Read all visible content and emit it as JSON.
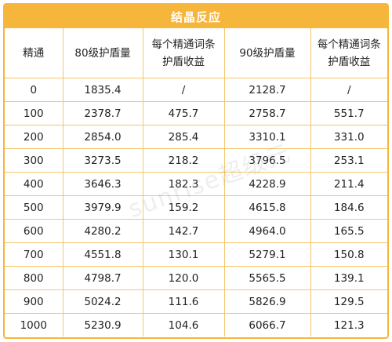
{
  "title": "结晶反应",
  "watermark": "sunrise超级元",
  "headers": [
    {
      "lines": [
        "精通"
      ]
    },
    {
      "lines": [
        "80级护盾量"
      ]
    },
    {
      "lines": [
        "每个精通词条",
        "护盾收益"
      ]
    },
    {
      "lines": [
        "90级护盾量"
      ]
    },
    {
      "lines": [
        "每个精通词条",
        "护盾收益"
      ]
    }
  ],
  "rows": [
    [
      "0",
      "1835.4",
      "/",
      "2128.7",
      "/"
    ],
    [
      "100",
      "2378.7",
      "475.7",
      "2758.7",
      "551.7"
    ],
    [
      "200",
      "2854.0",
      "285.4",
      "3310.1",
      "331.0"
    ],
    [
      "300",
      "3273.5",
      "218.2",
      "3796.5",
      "253.1"
    ],
    [
      "400",
      "3646.3",
      "182.3",
      "4228.9",
      "211.4"
    ],
    [
      "500",
      "3979.9",
      "159.2",
      "4615.8",
      "184.6"
    ],
    [
      "600",
      "4280.2",
      "142.7",
      "4964.0",
      "165.5"
    ],
    [
      "700",
      "4551.8",
      "130.1",
      "5279.1",
      "150.8"
    ],
    [
      "800",
      "4798.7",
      "120.0",
      "5565.5",
      "139.1"
    ],
    [
      "900",
      "5024.2",
      "111.6",
      "5826.9",
      "129.5"
    ],
    [
      "1000",
      "5230.9",
      "104.6",
      "6066.7",
      "121.3"
    ]
  ],
  "colors": {
    "accent": "#F6B53B",
    "grid": "#F6C56A",
    "text": "#222222"
  }
}
